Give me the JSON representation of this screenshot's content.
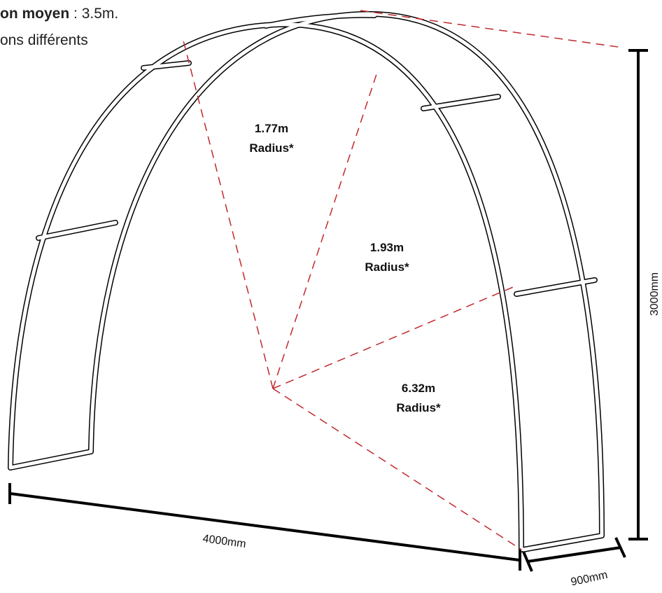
{
  "header": {
    "lines": [
      {
        "bold": "on moyen",
        "text": " : 3.5m."
      },
      {
        "text": "ons différents"
      }
    ]
  },
  "radii": [
    {
      "value": "1.77m",
      "label": "Radius*"
    },
    {
      "value": "1.93m",
      "label": "Radius*"
    },
    {
      "value": "6.32m",
      "label": "Radius*"
    }
  ],
  "dimensions": {
    "width": "4000mm",
    "depth": "900mm",
    "height": "3000mm"
  }
}
